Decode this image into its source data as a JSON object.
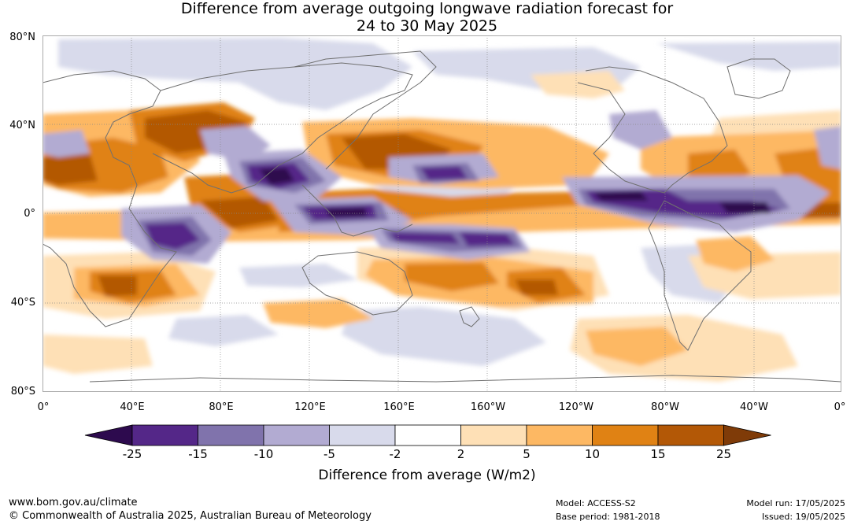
{
  "title": {
    "line1": "Difference from average outgoing longwave radiation forecast for",
    "line2": "24 to 30 May 2025"
  },
  "lat_labels": [
    "80°N",
    "40°N",
    "0°",
    "40°S",
    "80°S"
  ],
  "lon_labels": [
    "0°",
    "40°E",
    "80°E",
    "120°E",
    "160°E",
    "160°W",
    "120°W",
    "80°W",
    "40°W",
    "0°"
  ],
  "colorbar": {
    "title": "Difference from average (W/m2)",
    "ticks": [
      "-25",
      "-15",
      "-10",
      "-5",
      "-2",
      "2",
      "5",
      "10",
      "15",
      "25"
    ],
    "colors": [
      "#2d0a4e",
      "#542788",
      "#8073ac",
      "#b2abd2",
      "#d8daeb",
      "#ffffff",
      "#fee0b6",
      "#fdb863",
      "#e08214",
      "#b35806",
      "#7f3b08"
    ]
  },
  "footer": {
    "url": "www.bom.gov.au/climate",
    "copyright": "© Commonwealth of Australia 2025, Australian Bureau of Meteorology",
    "model": "Model: ACCESS-S2",
    "base_period": "Base period: 1981-2018",
    "model_run": "Model run: 17/05/2025",
    "issued": "Issued: 19/05/2025"
  }
}
